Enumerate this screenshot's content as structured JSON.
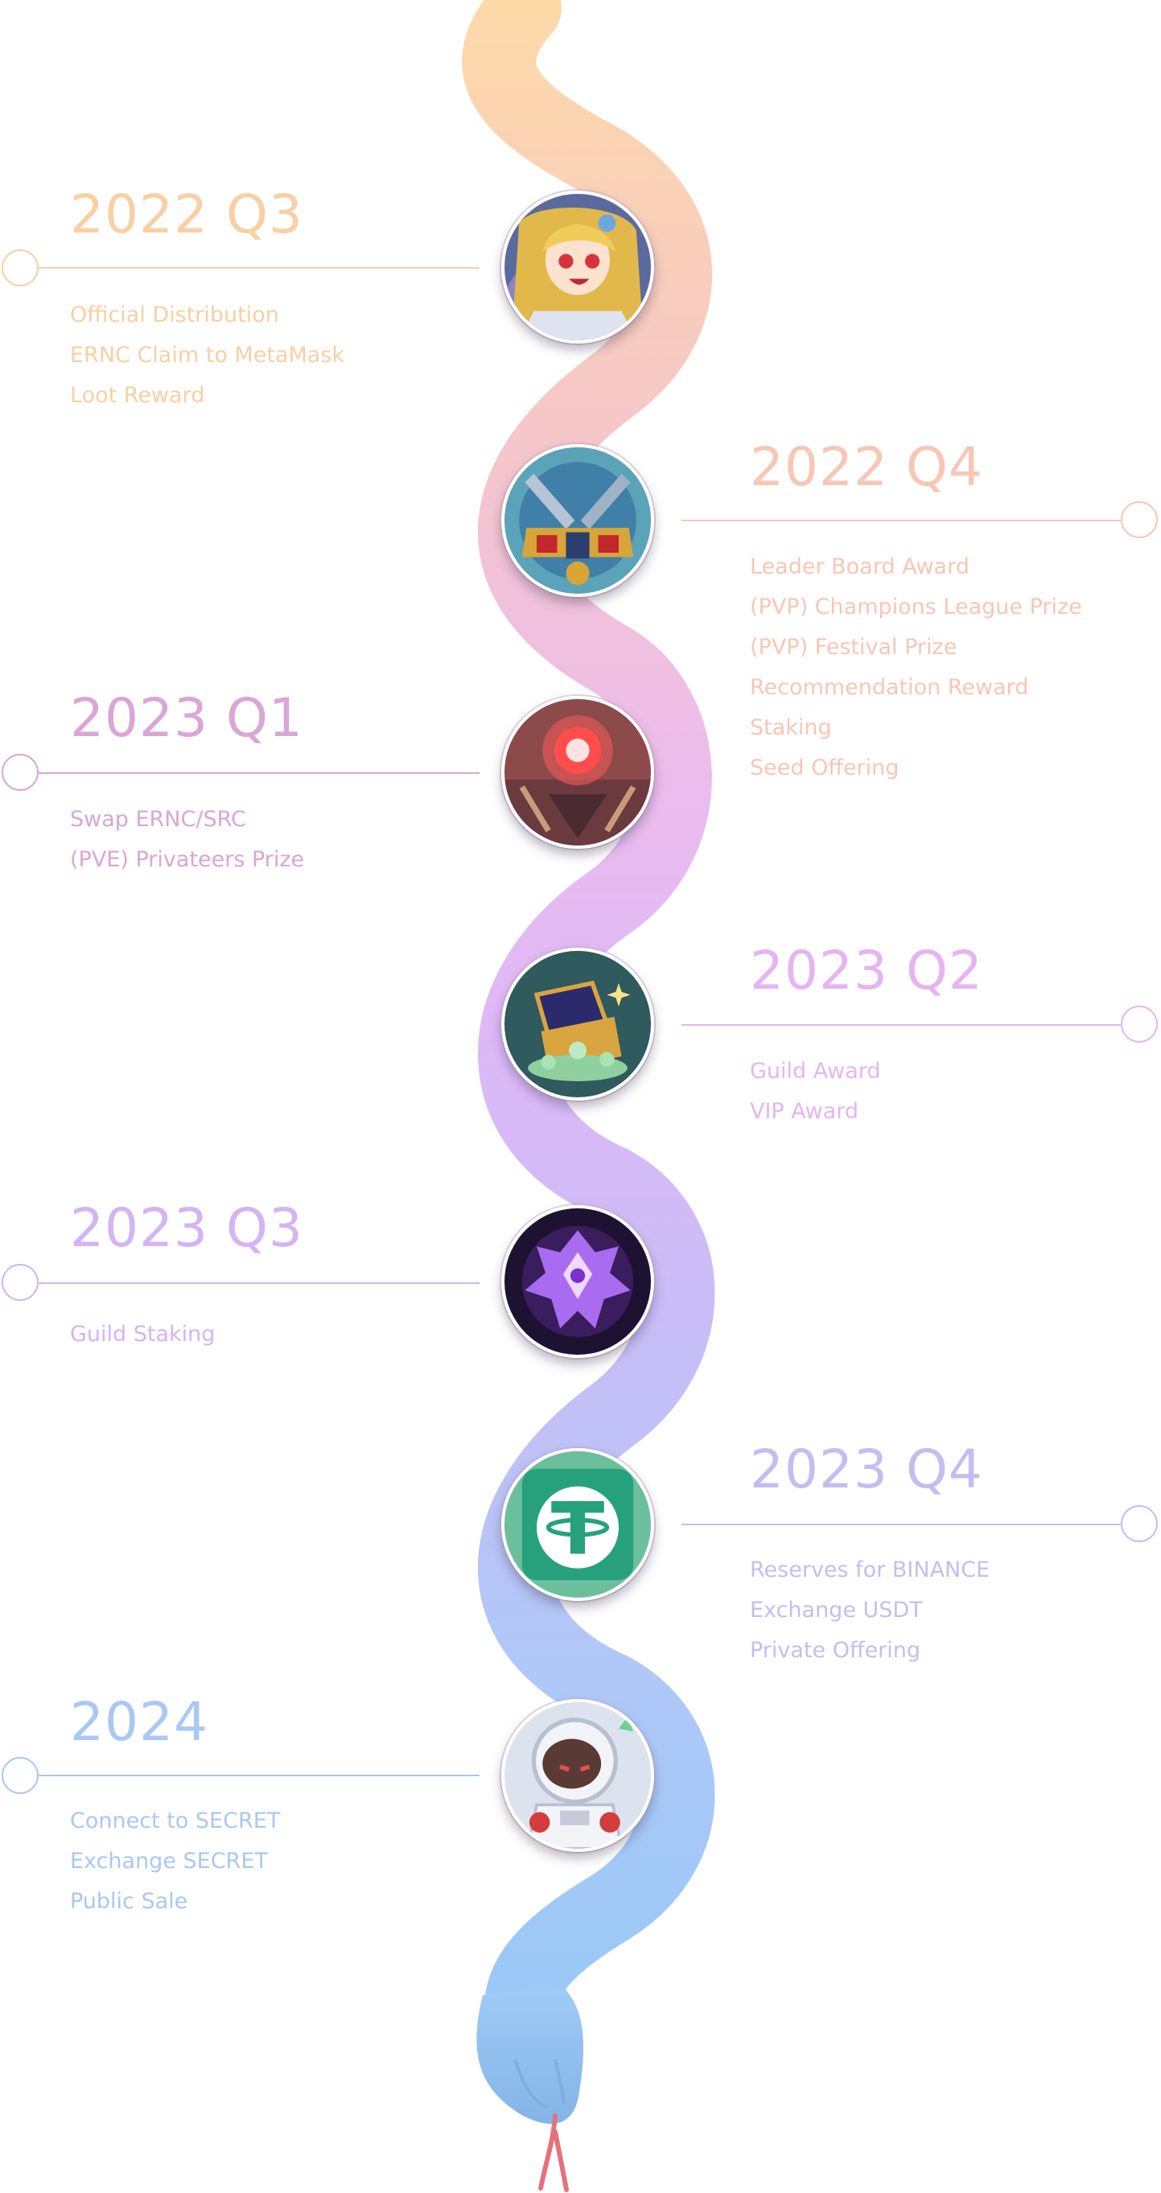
{
  "colors": {
    "orange": "#f9cfa3",
    "peach": "#f8c6b4",
    "mauve": "#d9a6d6",
    "pink_purple": "#e6b4f2",
    "lavender": "#d3b4f4",
    "periwinkle": "#c3bef1",
    "blue": "#a9c8f4",
    "snake_tail": "#fdd9a8",
    "snake_mid": "#e3b9f6",
    "snake_head": "#9ccaf6",
    "tongue": "#e4727c"
  },
  "milestones": [
    {
      "period": "2022 Q3",
      "items": [
        "Official Distribution",
        "ERNC Claim to MetaMask",
        "Loot Reward"
      ],
      "icon": "anime-girl-icon"
    },
    {
      "period": "2022 Q4",
      "items": [
        "Leader Board Award",
        "(PVP) Champions League Prize",
        "(PVP) Festival Prize",
        "Recommendation Reward",
        "Staking",
        "Seed Offering"
      ],
      "icon": "crossed-swords-shield-icon"
    },
    {
      "period": "2023 Q1",
      "items": [
        "Swap ERNC/SRC",
        "(PVE) Privateers Prize"
      ],
      "icon": "red-emblem-icon"
    },
    {
      "period": "2023 Q2",
      "items": [
        "Guild Award",
        "VIP Award"
      ],
      "icon": "treasure-chest-icon"
    },
    {
      "period": "2023 Q3",
      "items": [
        "Guild Staking"
      ],
      "icon": "purple-crest-icon"
    },
    {
      "period": "2023 Q4",
      "items": [
        "Reserves for BINANCE",
        "Exchange USDT",
        "Private Offering"
      ],
      "icon": "tether-usdt-icon"
    },
    {
      "period": "2024",
      "items": [
        "Connect to SECRET",
        "Exchange SECRET",
        "Public Sale"
      ],
      "icon": "astronaut-icon"
    }
  ]
}
